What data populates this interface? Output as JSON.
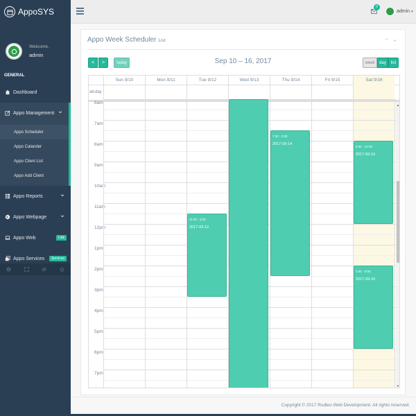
{
  "app": {
    "name": "AppoSYS"
  },
  "profile": {
    "welcome": "Welcome,",
    "name": "admin"
  },
  "sidebar": {
    "section": "GENERAL",
    "dashboard": "Dashboard",
    "management": "Appo Management",
    "sub_items": [
      "Appo Scheduler",
      "Appo Calander",
      "Appo Client List",
      "Appo Add Client"
    ],
    "reports": "Appo Reports",
    "webpage": "Appo Webpage",
    "web": "Appo Web",
    "web_badge": "Link",
    "services": "Appo Services",
    "services_badge": "Services"
  },
  "topbar": {
    "mail_count": "0",
    "user": "admin"
  },
  "panel": {
    "title": "Appo Week Scheduler",
    "subtitle": "List",
    "collapse": "^",
    "close": "+"
  },
  "calendar": {
    "title": "Sep 10 – 16, 2017",
    "buttons": {
      "prev": "<",
      "next": ">",
      "today": "today",
      "week": "week",
      "day": "day",
      "list": "list"
    },
    "allday_label": "all-day",
    "days": [
      "Sun 9/10",
      "Mon 9/11",
      "Tue 9/12",
      "Wed 9/13",
      "Thu 9/14",
      "Fri 9/15",
      "Sat 9/16"
    ],
    "times": [
      "6am",
      "7am",
      "8am",
      "9am",
      "10am",
      "11am",
      "12pm",
      "1pm",
      "2pm",
      "3pm",
      "4pm",
      "5pm",
      "6pm",
      "7pm"
    ],
    "events": [
      {
        "day": 2,
        "start": 11.5,
        "end": 15.5,
        "time": "11:30 - 3:30",
        "title": "2017-09-12"
      },
      {
        "day": 3,
        "start": 6.0,
        "end": 20.0,
        "time": "",
        "title": ""
      },
      {
        "day": 4,
        "start": 7.5,
        "end": 14.5,
        "time": "7:30 - 2:30",
        "title": "2017-09-14"
      },
      {
        "day": 6,
        "start": 8.0,
        "end": 12.0,
        "time": "8:00 - 12:00",
        "title": "2017-09-16"
      },
      {
        "day": 6,
        "start": 14.0,
        "end": 18.0,
        "time": "2:00 - 6:00",
        "title": "2017-09-16"
      }
    ]
  },
  "footer": {
    "copyright": "Copyright © 2017 Rudleo Web Development. All rights reserved."
  },
  "colors": {
    "sidebar": "#2a3f54",
    "accent": "#1abb9c",
    "event": "#4fcdb0",
    "today": "#fcf8e3"
  }
}
